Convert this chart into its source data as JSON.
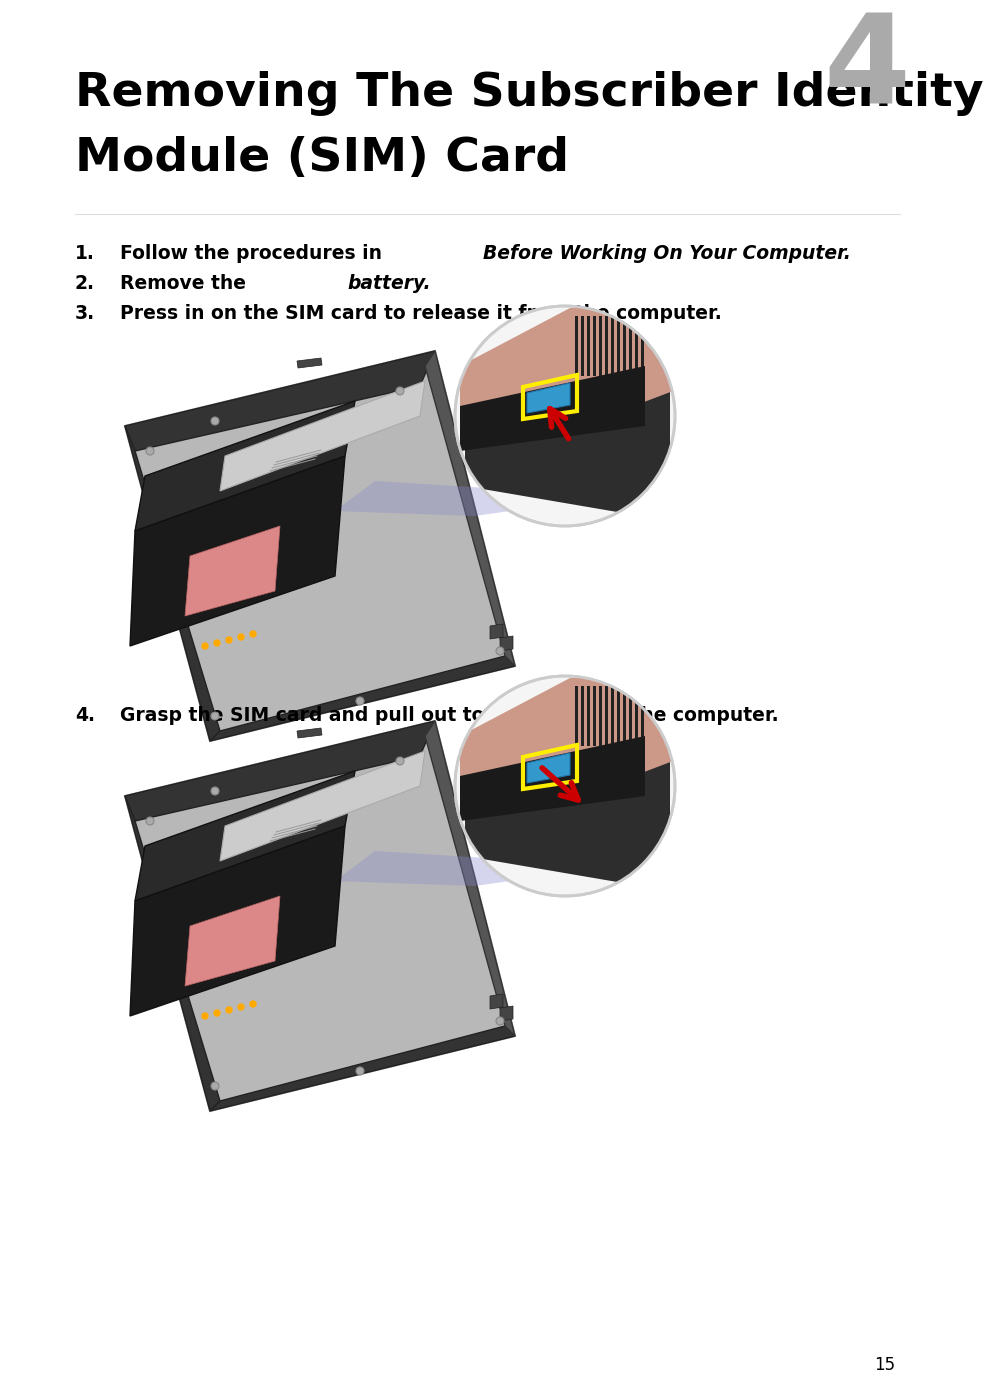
{
  "title_line1": "Removing The Subscriber Identity",
  "title_line2": "Module (SIM) Card",
  "chapter_num": "4",
  "background_color": "#ffffff",
  "title_color": "#000000",
  "chapter_color": "#aaaaaa",
  "body_color": "#000000",
  "step1_normal": "Follow the procedures in ",
  "step1_italic": "Before Working On Your Computer.",
  "step2_normal": "Remove the ",
  "step2_italic": "battery.",
  "step3": "Press in on the SIM card to release it from the computer.",
  "step4": "Grasp the SIM card and pull out to release from the computer.",
  "page_number": "15",
  "title_fontsize": 34,
  "chapter_fontsize": 90,
  "body_fontsize": 13.5,
  "page_num_fontsize": 12
}
